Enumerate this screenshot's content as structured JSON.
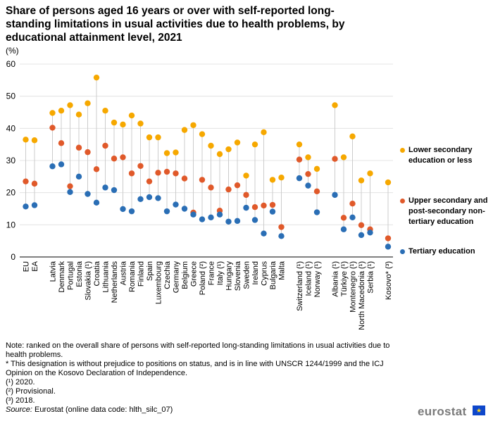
{
  "title": "Share of persons aged 16 years or over with self-reported long-standing limitations in usual activities due to health problems, by educational attainment level, 2021",
  "unit": "(%)",
  "colors": {
    "lower": "#f6a800",
    "upper": "#e0592a",
    "tertiary": "#2a6eb5",
    "stem": "#cccccc",
    "grid": "#dddddd"
  },
  "chart_data": {
    "type": "scatter",
    "title": "Share of persons aged 16 years or over with self-reported long-standing limitations in usual activities due to health problems, by educational attainment level, 2021",
    "ylabel": "(%)",
    "ylim": [
      0,
      60
    ],
    "yticks": [
      0,
      10,
      20,
      30,
      40,
      50,
      60
    ],
    "grid": true,
    "legend_position": "right",
    "categories": [
      "EU",
      "EA",
      "Latvia",
      "Denmark",
      "Portugal",
      "Estonia",
      "Slovakia (¹)",
      "Croatia",
      "Lithuania",
      "Netherlands",
      "Austria",
      "Romania",
      "Finland",
      "Spain",
      "Luxembourg",
      "Czechia",
      "Germany",
      "Belgium",
      "Greece",
      "Poland (²)",
      "France",
      "Italy (¹)",
      "Hungary",
      "Slovenia",
      "Sweden",
      "Ireland",
      "Cyprus",
      "Bulgaria",
      "Malta",
      "Switzerland (¹)",
      "Iceland (¹)",
      "Norway (¹)",
      "Albania (¹)",
      "Türkiye (¹)",
      "Montenegro (¹)",
      "North Macedonia (¹)",
      "Serbia (¹)",
      "Kosovo* (³)"
    ],
    "series": [
      {
        "name": "Lower secondary education or less",
        "key": "lower",
        "values": [
          36.5,
          36.3,
          44.8,
          45.5,
          47.2,
          44.3,
          47.8,
          55.8,
          45.5,
          41.8,
          41.2,
          44.0,
          41.5,
          37.2,
          37.2,
          32.3,
          32.5,
          39.5,
          41.0,
          38.2,
          34.6,
          32.0,
          33.5,
          35.6,
          25.3,
          35.0,
          38.8,
          24.0,
          24.7,
          35.0,
          31.0,
          27.4,
          47.2,
          31.0,
          37.5,
          23.8,
          26.0,
          23.2
        ]
      },
      {
        "name": "Upper secondary and post-secondary non-tertiary education",
        "key": "upper",
        "values": [
          23.5,
          22.8,
          40.2,
          35.4,
          22.0,
          34.0,
          32.6,
          27.3,
          34.6,
          30.6,
          31.0,
          26.0,
          28.3,
          23.5,
          26.2,
          26.5,
          26.0,
          24.4,
          13.8,
          24.0,
          21.6,
          14.4,
          21.0,
          22.3,
          19.3,
          15.5,
          16.0,
          16.2,
          9.3,
          30.3,
          25.8,
          20.4,
          30.5,
          12.2,
          16.6,
          9.9,
          8.6,
          5.8
        ]
      },
      {
        "name": "Tertiary education",
        "key": "tertiary",
        "values": [
          15.7,
          16.1,
          28.2,
          28.8,
          20.2,
          25.0,
          19.6,
          16.9,
          21.6,
          20.8,
          14.9,
          14.2,
          18.0,
          18.6,
          18.3,
          14.2,
          16.3,
          15.0,
          13.2,
          11.7,
          12.3,
          13.2,
          11.0,
          11.2,
          15.3,
          11.5,
          7.3,
          14.1,
          6.5,
          24.5,
          22.2,
          13.9,
          19.3,
          8.6,
          12.3,
          6.8,
          7.6,
          3.2
        ]
      }
    ]
  },
  "notes": [
    "Note: ranked on the overall share of persons with self-reported long-standing limitations in usual activities due to health problems.",
    "* This designation is without prejudice to positions on status, and is in line with UNSCR 1244/1999 and the ICJ Opinion on the Kosovo Declaration of Independence.",
    "(¹) 2020.",
    "(²) Provisional.",
    "(³) 2018."
  ],
  "source": {
    "label": "Source:",
    "text": " Eurostat (online data code: hlth_silc_07)"
  },
  "logo": "eurostat"
}
